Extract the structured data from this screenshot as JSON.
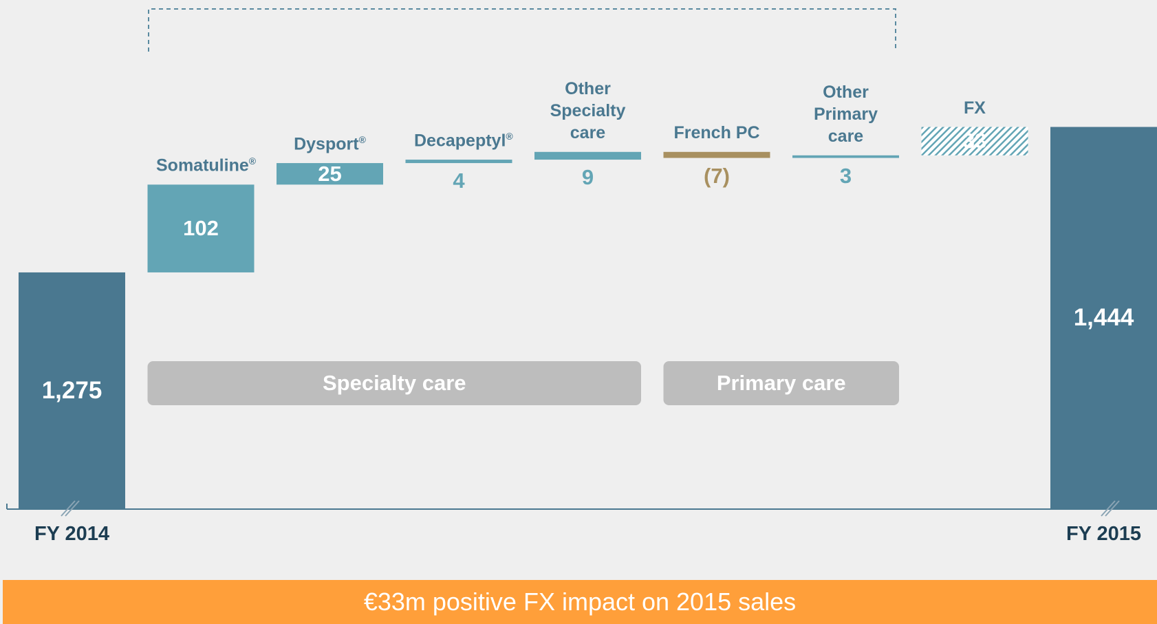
{
  "chart_data": {
    "type": "waterfall",
    "categories": [
      "FY 2014",
      "Somatuline®",
      "Dysport®",
      "Decapeptyl®",
      "Other Specialty care",
      "French PC",
      "Other Primary care",
      "FX",
      "FY 2015"
    ],
    "values": [
      1275,
      102,
      25,
      4,
      9,
      -7,
      3,
      33,
      1444
    ],
    "value_labels": [
      "1,275",
      "102",
      "25",
      "4",
      "9",
      "(7)",
      "3",
      "33",
      "1,444"
    ],
    "colors": [
      "#4a7890",
      "#63a5b5",
      "#63a5b5",
      "#63a5b5",
      "#63a5b5",
      "#a89060",
      "#63a5b5",
      "#63a5b5",
      "#4a7890"
    ],
    "hatch": [
      false,
      false,
      false,
      false,
      false,
      false,
      false,
      true,
      false
    ],
    "ylim": [
      1000,
      1450
    ],
    "groups": [
      {
        "label": "Specialty care",
        "from": 1,
        "to": 4
      },
      {
        "label": "Primary care",
        "from": 5,
        "to": 6
      }
    ],
    "banner": "€33m positive FX impact on 2015 sales"
  }
}
